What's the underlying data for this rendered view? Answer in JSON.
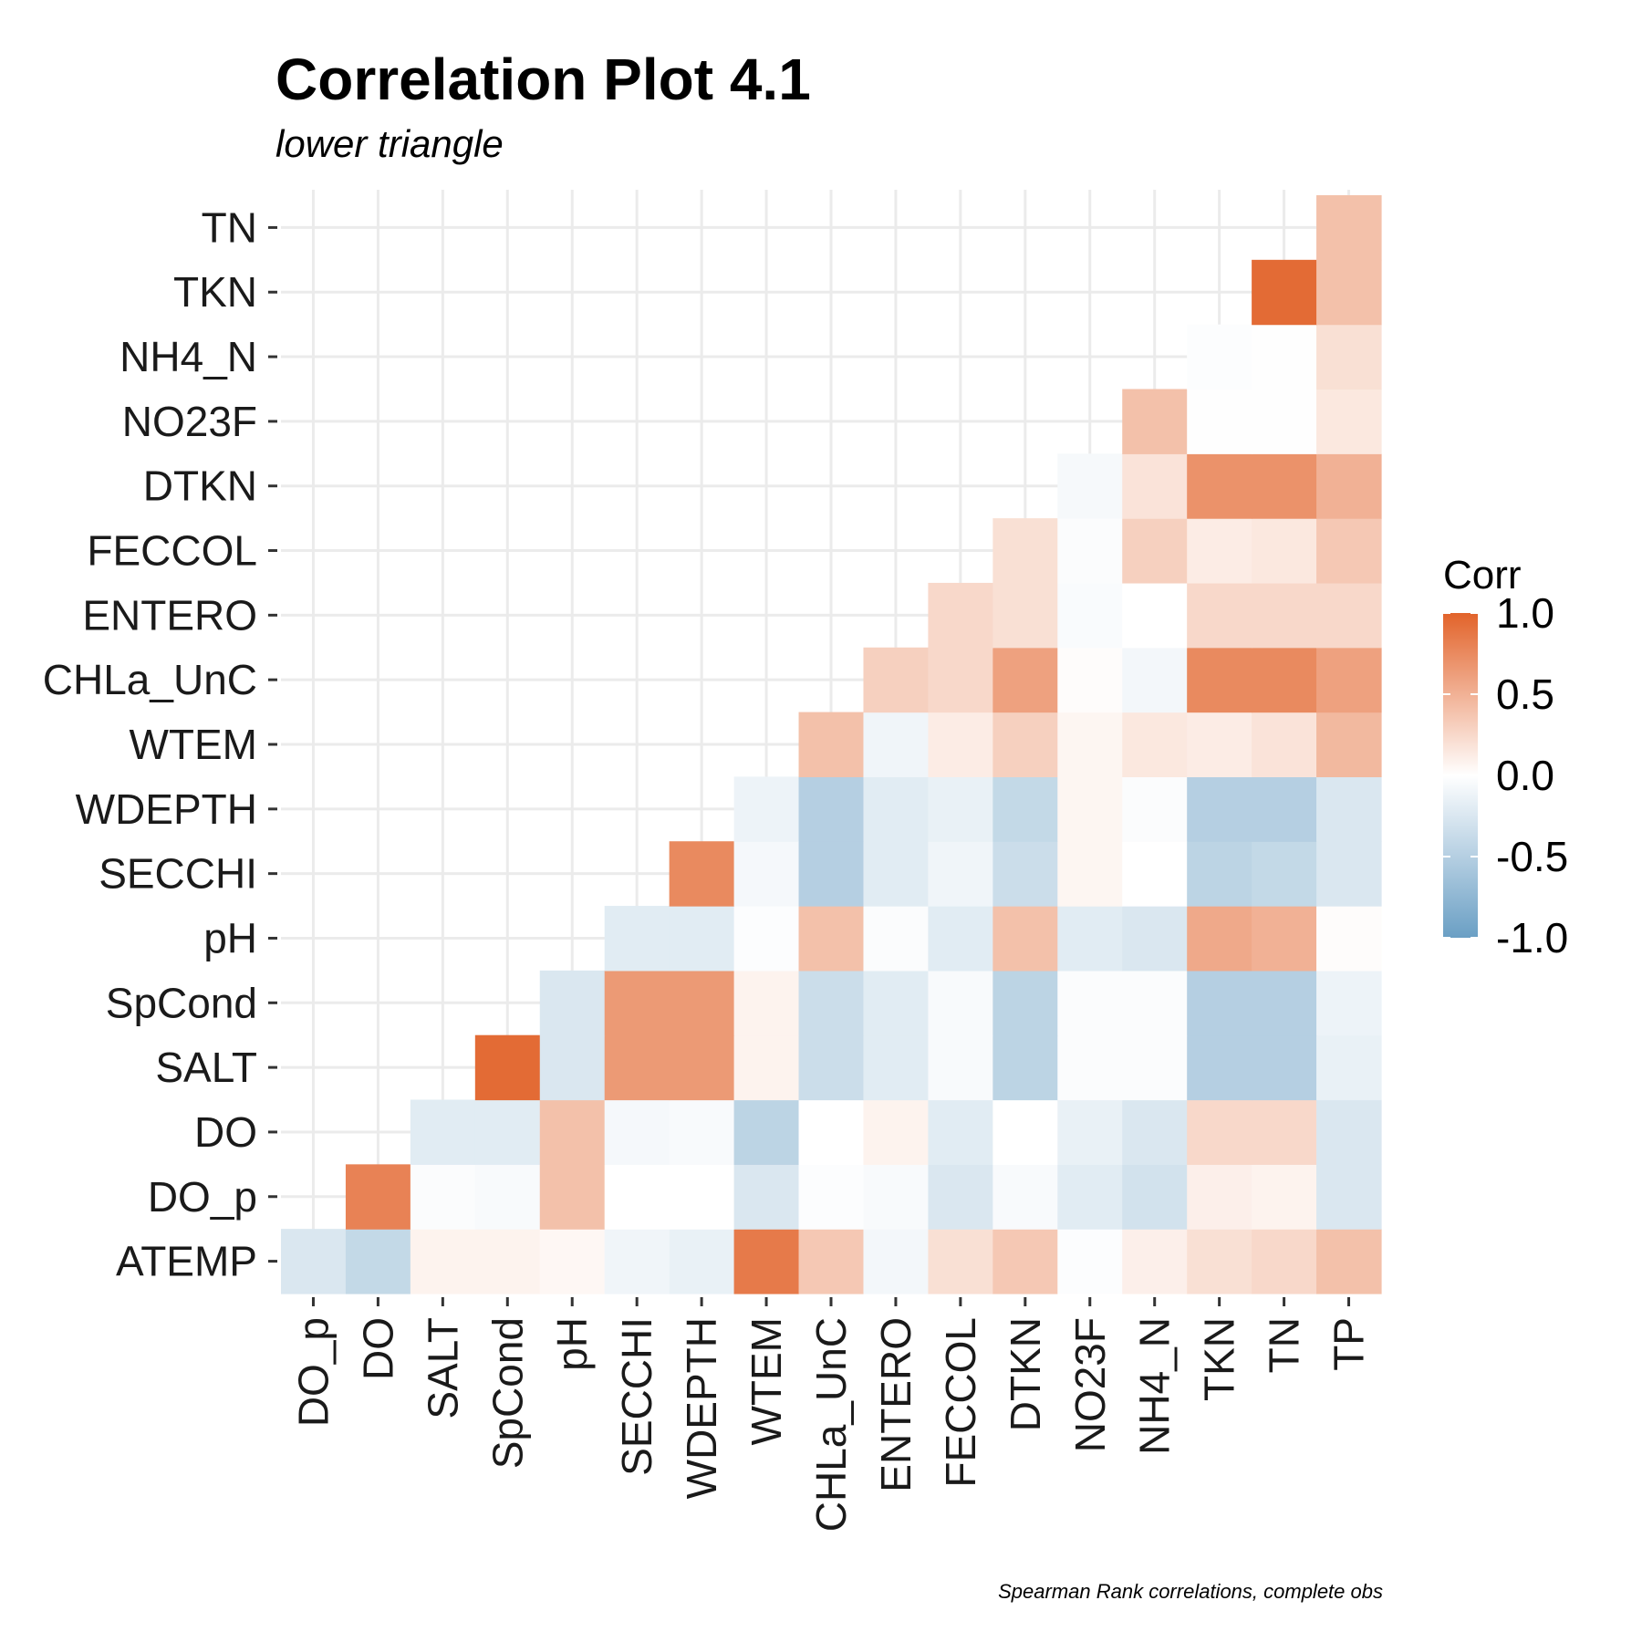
{
  "chart_data": {
    "type": "heatmap",
    "title": "Correlation Plot 4.1",
    "subtitle": "lower triangle",
    "caption": "Spearman Rank correlations, complete obs",
    "x_categories": [
      "DO_p",
      "DO",
      "SALT",
      "SpCond",
      "pH",
      "SECCHI",
      "WDEPTH",
      "WTEM",
      "CHLa_UnC",
      "ENTERO",
      "FECCOL",
      "DTKN",
      "NO23F",
      "NH4_N",
      "TKN",
      "TN",
      "TP"
    ],
    "y_categories": [
      "ATEMP",
      "DO_p",
      "DO",
      "SALT",
      "SpCond",
      "pH",
      "SECCHI",
      "WDEPTH",
      "WTEM",
      "CHLa_UnC",
      "ENTERO",
      "FECCOL",
      "DTKN",
      "NO23F",
      "NH4_N",
      "TKN",
      "TN"
    ],
    "values": [
      [
        -0.25,
        -0.4,
        0.08,
        0.08,
        0.05,
        -0.1,
        -0.15,
        0.85,
        0.35,
        -0.08,
        0.2,
        0.35,
        -0.02,
        0.1,
        0.2,
        0.25,
        0.4
      ],
      [
        null,
        0.8,
        -0.03,
        -0.05,
        0.4,
        0.0,
        0.0,
        -0.25,
        -0.02,
        -0.05,
        -0.25,
        -0.05,
        -0.2,
        -0.3,
        0.1,
        0.08,
        -0.25
      ],
      [
        null,
        null,
        -0.2,
        -0.2,
        0.4,
        -0.07,
        -0.05,
        -0.45,
        0.0,
        0.08,
        -0.2,
        0.0,
        -0.15,
        -0.25,
        0.25,
        0.25,
        -0.25
      ],
      [
        null,
        null,
        null,
        0.95,
        -0.25,
        0.65,
        0.65,
        0.08,
        -0.35,
        -0.2,
        -0.05,
        -0.45,
        -0.03,
        -0.03,
        -0.5,
        -0.5,
        -0.15
      ],
      [
        null,
        null,
        null,
        null,
        -0.25,
        0.65,
        0.65,
        0.08,
        -0.35,
        -0.2,
        -0.05,
        -0.45,
        -0.03,
        -0.03,
        -0.5,
        -0.5,
        -0.12
      ],
      [
        null,
        null,
        null,
        null,
        null,
        -0.2,
        -0.2,
        -0.02,
        0.4,
        -0.03,
        -0.2,
        0.4,
        -0.2,
        -0.25,
        0.55,
        0.5,
        0.02
      ],
      [
        null,
        null,
        null,
        null,
        null,
        null,
        0.75,
        -0.07,
        -0.5,
        -0.2,
        -0.1,
        -0.35,
        0.06,
        0.0,
        -0.45,
        -0.4,
        -0.25
      ],
      [
        null,
        null,
        null,
        null,
        null,
        null,
        null,
        -0.12,
        -0.5,
        -0.2,
        -0.15,
        -0.4,
        0.06,
        -0.03,
        -0.5,
        -0.5,
        -0.25
      ],
      [
        null,
        null,
        null,
        null,
        null,
        null,
        null,
        null,
        0.4,
        -0.1,
        0.12,
        0.3,
        0.06,
        0.15,
        0.12,
        0.18,
        0.45
      ],
      [
        null,
        null,
        null,
        null,
        null,
        null,
        null,
        null,
        null,
        0.3,
        0.25,
        0.6,
        0.02,
        -0.08,
        0.75,
        0.75,
        0.6
      ],
      [
        null,
        null,
        null,
        null,
        null,
        null,
        null,
        null,
        null,
        null,
        0.25,
        0.2,
        -0.04,
        0.0,
        0.25,
        0.25,
        0.25
      ],
      [
        null,
        null,
        null,
        null,
        null,
        null,
        null,
        null,
        null,
        null,
        null,
        0.2,
        -0.03,
        0.3,
        0.12,
        0.15,
        0.35
      ],
      [
        null,
        null,
        null,
        null,
        null,
        null,
        null,
        null,
        null,
        null,
        null,
        null,
        -0.06,
        0.18,
        0.7,
        0.7,
        0.5
      ],
      [
        null,
        null,
        null,
        null,
        null,
        null,
        null,
        null,
        null,
        null,
        null,
        null,
        null,
        0.4,
        -0.01,
        -0.01,
        0.15
      ],
      [
        null,
        null,
        null,
        null,
        null,
        null,
        null,
        null,
        null,
        null,
        null,
        null,
        null,
        null,
        -0.02,
        -0.01,
        0.2
      ],
      [
        null,
        null,
        null,
        null,
        null,
        null,
        null,
        null,
        null,
        null,
        null,
        null,
        null,
        null,
        null,
        0.95,
        0.4
      ],
      [
        null,
        null,
        null,
        null,
        null,
        null,
        null,
        null,
        null,
        null,
        null,
        null,
        null,
        null,
        null,
        null,
        0.4
      ]
    ],
    "legend": {
      "title": "Corr",
      "range": [
        -1.0,
        1.0
      ],
      "ticks": [
        1.0,
        0.5,
        0.0,
        -0.5,
        -1.0
      ],
      "tick_labels": [
        "1.0",
        "0.5",
        "0.0",
        "-0.5",
        "-1.0"
      ],
      "placement": "right"
    },
    "colors": {
      "low": "#6a9fc4",
      "mid": "#ffffff",
      "high": "#e2632a"
    },
    "grid": true
  }
}
